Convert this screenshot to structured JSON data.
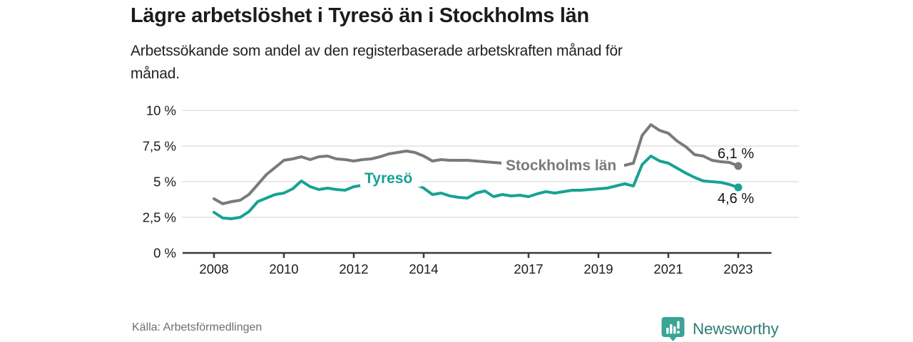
{
  "chart_data": {
    "type": "line",
    "title": "Lägre arbetslöshet i Tyresö än i Stockholms län",
    "subtitle_lines": [
      "Arbetssökande som andel av den registerbaserade arbetskraften månad för",
      "månad."
    ],
    "unit": "%",
    "ylim": [
      0,
      10
    ],
    "grid": true,
    "legend_position": "inline-labels",
    "y_ticks": [
      {
        "value": 0,
        "label": "0 %"
      },
      {
        "value": 2.5,
        "label": "2,5 %"
      },
      {
        "value": 5,
        "label": "5 %"
      },
      {
        "value": 7.5,
        "label": "7,5 %"
      },
      {
        "value": 10,
        "label": "10 %"
      }
    ],
    "x_ticks": [
      {
        "value": 2008,
        "label": "2008"
      },
      {
        "value": 2010,
        "label": "2010"
      },
      {
        "value": 2012,
        "label": "2012"
      },
      {
        "value": 2014,
        "label": "2014"
      },
      {
        "value": 2017,
        "label": "2017"
      },
      {
        "value": 2019,
        "label": "2019"
      },
      {
        "value": 2021,
        "label": "2021"
      },
      {
        "value": 2023,
        "label": "2023"
      }
    ],
    "x_axis_range": [
      2007.1,
      2023.95
    ],
    "series": [
      {
        "id": "stockholm",
        "name": "Stockholms län",
        "color": "#7a7a7a",
        "end_label": "6,1 %",
        "end_value": 6.1,
        "x_start": 2008,
        "x_step": 0.25,
        "values": [
          3.8,
          3.45,
          3.6,
          3.7,
          4.1,
          4.8,
          5.5,
          6.0,
          6.5,
          6.6,
          6.75,
          6.55,
          6.75,
          6.8,
          6.6,
          6.55,
          6.45,
          6.55,
          6.6,
          6.75,
          6.95,
          7.05,
          7.15,
          7.05,
          6.8,
          6.45,
          6.55,
          6.5,
          6.5,
          6.5,
          6.45,
          6.4,
          6.35,
          6.3,
          6.25,
          6.2,
          6.2,
          6.15,
          6.15,
          6.15,
          6.15,
          6.15,
          6.1,
          6.1,
          6.1,
          6.1,
          6.15,
          6.15,
          6.3,
          8.25,
          9.0,
          8.6,
          8.4,
          7.85,
          7.45,
          6.9,
          6.8,
          6.5,
          6.4,
          6.35,
          6.1
        ]
      },
      {
        "id": "tyreso",
        "name": "Tyresö",
        "color": "#17a295",
        "end_label": "4,6 %",
        "end_value": 4.6,
        "x_start": 2008,
        "x_step": 0.25,
        "values": [
          2.85,
          2.45,
          2.4,
          2.5,
          2.9,
          3.6,
          3.85,
          4.1,
          4.2,
          4.5,
          5.05,
          4.65,
          4.45,
          4.55,
          4.45,
          4.4,
          4.65,
          4.75,
          4.8,
          4.8,
          4.85,
          4.9,
          4.9,
          4.85,
          4.55,
          4.1,
          4.2,
          4.0,
          3.9,
          3.85,
          4.2,
          4.35,
          3.95,
          4.1,
          4.0,
          4.05,
          3.95,
          4.15,
          4.3,
          4.2,
          4.3,
          4.4,
          4.4,
          4.45,
          4.5,
          4.55,
          4.7,
          4.85,
          4.7,
          6.2,
          6.8,
          6.45,
          6.3,
          5.95,
          5.6,
          5.3,
          5.05,
          5.0,
          4.95,
          4.8,
          4.6
        ]
      }
    ]
  },
  "footer": {
    "source": "Källa: Arbetsförmedlingen",
    "brand": "Newsworthy",
    "brand_text_color": "#2f7e74",
    "brand_icon_color": "#3aa496"
  }
}
